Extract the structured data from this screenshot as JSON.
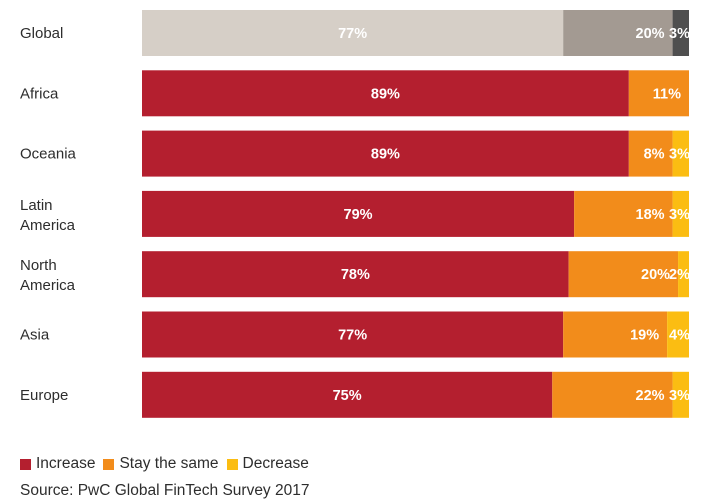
{
  "chart_data": {
    "type": "bar",
    "orientation": "horizontal",
    "stacked": true,
    "categories": [
      "Global",
      "Africa",
      "Oceania",
      "Latin America",
      "North America",
      "Asia",
      "Europe"
    ],
    "series": [
      {
        "name": "Increase",
        "values": [
          77,
          89,
          89,
          79,
          78,
          77,
          75
        ]
      },
      {
        "name": "Stay the same",
        "values": [
          20,
          11,
          8,
          18,
          20,
          19,
          22
        ]
      },
      {
        "name": "Decrease",
        "values": [
          3,
          0,
          3,
          3,
          2,
          4,
          3
        ]
      }
    ],
    "value_labels": [
      [
        "77%",
        "20%",
        "3%"
      ],
      [
        "89%",
        "11%",
        ""
      ],
      [
        "89%",
        "8%",
        "3%"
      ],
      [
        "79%",
        "18%",
        "3%"
      ],
      [
        "78%",
        "20%",
        "2%"
      ],
      [
        "77%",
        "19%",
        "4%"
      ],
      [
        "75%",
        "22%",
        "3%"
      ]
    ],
    "colors": {
      "increase": "#b41f2f",
      "stay": "#f28c1b",
      "decrease": "#fbbd12",
      "global_increase": "#d6cfc7",
      "global_stay": "#a39a92",
      "global_decrease": "#4f4f4f"
    },
    "xlim": [
      0,
      100
    ],
    "grid": false,
    "legend_position": "bottom-left"
  },
  "legend": {
    "increase": "Increase",
    "stay": "Stay the same",
    "decrease": "Decrease"
  },
  "source": "Source: PwC Global FinTech Survey 2017"
}
